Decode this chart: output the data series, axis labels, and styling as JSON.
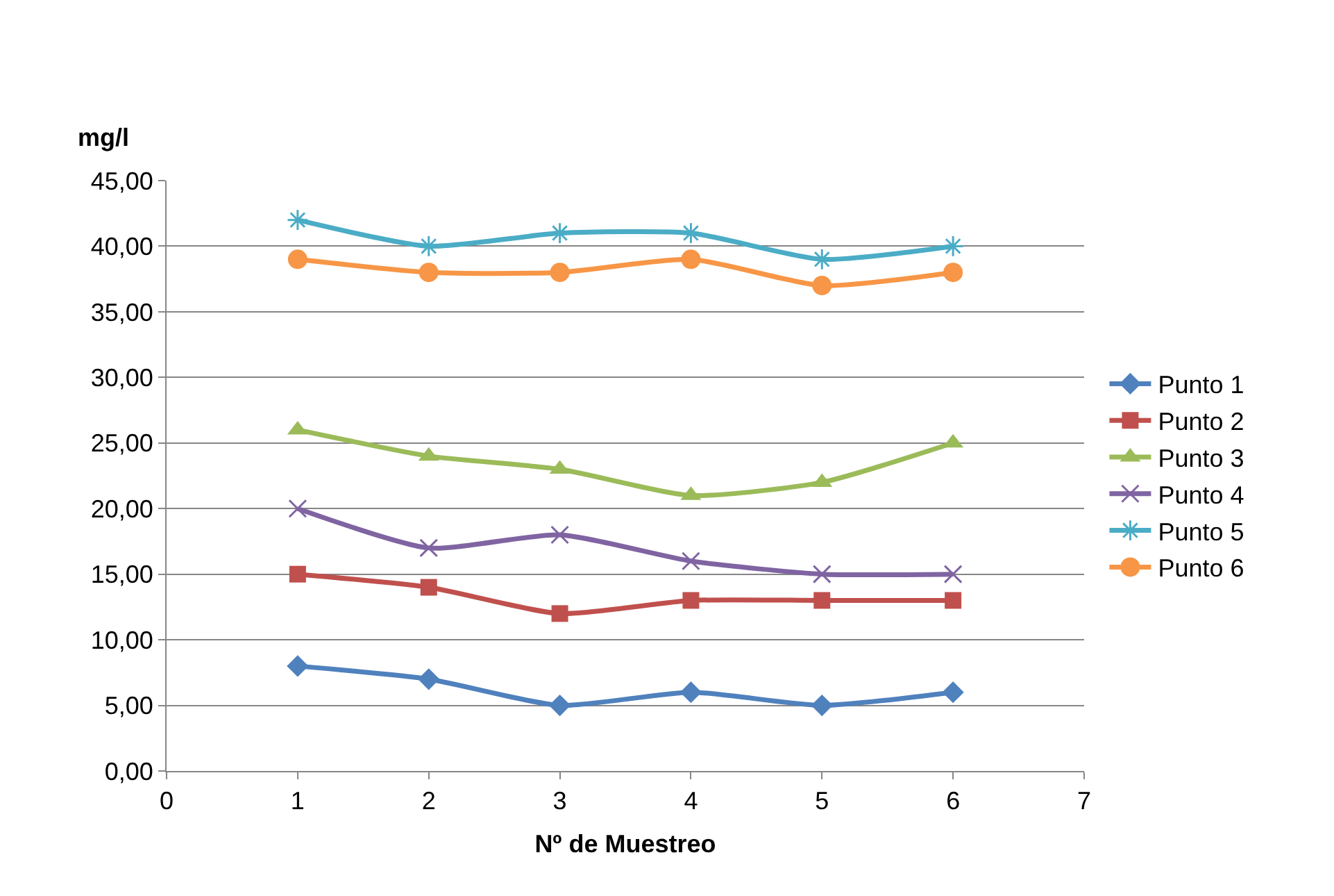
{
  "chart_data": {
    "type": "line",
    "ylabel": "mg/l",
    "xlabel": "Nº de Muestreo",
    "x": [
      1,
      2,
      3,
      4,
      5,
      6
    ],
    "xlim": [
      0,
      7
    ],
    "xticks": [
      0,
      1,
      2,
      3,
      4,
      5,
      6,
      7
    ],
    "ylim": [
      0,
      45
    ],
    "yticks": [
      {
        "value": 0,
        "label": "0,00"
      },
      {
        "value": 5,
        "label": "5,00"
      },
      {
        "value": 10,
        "label": "10,00"
      },
      {
        "value": 15,
        "label": "15,00"
      },
      {
        "value": 20,
        "label": "20,00"
      },
      {
        "value": 25,
        "label": "25,00"
      },
      {
        "value": 30,
        "label": "30,00"
      },
      {
        "value": 35,
        "label": "35,00"
      },
      {
        "value": 40,
        "label": "40,00"
      },
      {
        "value": 45,
        "label": "45,00"
      }
    ],
    "grid": "y",
    "legend": "right",
    "line_style": "solid",
    "series": [
      {
        "name": "Punto 1",
        "color": "#4f81bd",
        "marker": "diamond",
        "values": [
          8,
          7,
          5,
          6,
          5,
          6
        ]
      },
      {
        "name": "Punto 2",
        "color": "#c0504d",
        "marker": "square",
        "values": [
          15,
          14,
          12,
          13,
          13,
          13
        ]
      },
      {
        "name": "Punto 3",
        "color": "#9bbb59",
        "marker": "triangle",
        "values": [
          26,
          24,
          23,
          21,
          22,
          25
        ]
      },
      {
        "name": "Punto 4",
        "color": "#8064a2",
        "marker": "cross",
        "values": [
          20,
          17,
          18,
          16,
          15,
          15
        ]
      },
      {
        "name": "Punto 5",
        "color": "#4bacc6",
        "marker": "cross",
        "values": [
          42,
          40,
          41,
          41,
          39,
          40
        ]
      },
      {
        "name": "Punto 6",
        "color": "#f79646",
        "marker": "circle",
        "values": [
          39,
          38,
          38,
          39,
          37,
          38
        ]
      }
    ]
  }
}
